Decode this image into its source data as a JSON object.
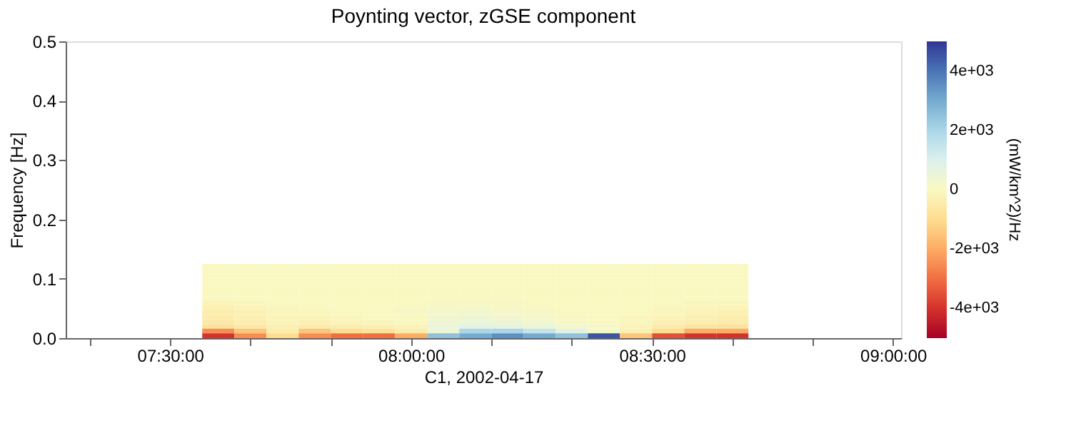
{
  "chart_data": {
    "type": "heatmap",
    "title": "Poynting vector, zGSE component",
    "xlabel": "C1, 2002-04-17",
    "ylabel": "Frequency [Hz]",
    "clabel": "(mW/km^2)/Hz",
    "x": [
      "2002-04-17T07:36",
      "2002-04-17T07:40",
      "2002-04-17T07:44",
      "2002-04-17T07:48",
      "2002-04-17T07:52",
      "2002-04-17T07:56",
      "2002-04-17T08:00",
      "2002-04-17T08:04",
      "2002-04-17T08:08",
      "2002-04-17T08:12",
      "2002-04-17T08:16",
      "2002-04-17T08:20",
      "2002-04-17T08:24",
      "2002-04-17T08:28",
      "2002-04-17T08:32",
      "2002-04-17T08:36",
      "2002-04-17T08:40"
    ],
    "y": [
      0.121,
      0.113,
      0.105,
      0.098,
      0.09,
      0.082,
      0.074,
      0.066,
      0.059,
      0.051,
      0.043,
      0.035,
      0.027,
      0.02,
      0.012,
      0.004
    ],
    "cells": [
      [
        0,
        0,
        0,
        0,
        0,
        0,
        0,
        0,
        0,
        0,
        0,
        0,
        0,
        0,
        0,
        0,
        0
      ],
      [
        0,
        0,
        0,
        0,
        0,
        0,
        0,
        0,
        0,
        0,
        0,
        0,
        0,
        0,
        0,
        0,
        0
      ],
      [
        0,
        0,
        0,
        0,
        0,
        0,
        0,
        0,
        0,
        0,
        0,
        0,
        0,
        0,
        0,
        0,
        0
      ],
      [
        0,
        0,
        0,
        0,
        0,
        0,
        0,
        0,
        0,
        0,
        0,
        0,
        0,
        0,
        0,
        0,
        0
      ],
      [
        0,
        0,
        0,
        0,
        0,
        0,
        0,
        0,
        0,
        0,
        0,
        0,
        0,
        0,
        0,
        0,
        0
      ],
      [
        0,
        0,
        0,
        0,
        0,
        0,
        0,
        0,
        0,
        0,
        0,
        0,
        0,
        0,
        0,
        0,
        0
      ],
      [
        0,
        0,
        0,
        0,
        0,
        0,
        0,
        0,
        0,
        0,
        0,
        0,
        0,
        0,
        0,
        0,
        0
      ],
      [
        0,
        0,
        0,
        0,
        0,
        0,
        0,
        0,
        0,
        0,
        0,
        0,
        0,
        0,
        0,
        0,
        0
      ],
      [
        -200,
        -100,
        0,
        0,
        0,
        0,
        0,
        100,
        100,
        100,
        0,
        0,
        0,
        0,
        0,
        -100,
        -100
      ],
      [
        -300,
        -200,
        -100,
        0,
        0,
        0,
        100,
        200,
        200,
        100,
        100,
        0,
        0,
        0,
        -100,
        -100,
        -200
      ],
      [
        -400,
        -300,
        -100,
        -100,
        0,
        0,
        100,
        200,
        300,
        200,
        100,
        0,
        0,
        0,
        -100,
        -200,
        -300
      ],
      [
        -500,
        -300,
        -200,
        -200,
        -100,
        0,
        0,
        300,
        400,
        300,
        200,
        100,
        0,
        -100,
        -200,
        -300,
        -400
      ],
      [
        -600,
        -400,
        -200,
        -300,
        -200,
        -100,
        0,
        400,
        500,
        400,
        300,
        100,
        0,
        -100,
        -300,
        -400,
        -500
      ],
      [
        -800,
        -600,
        -300,
        -500,
        -400,
        -300,
        -200,
        500,
        800,
        700,
        500,
        200,
        100,
        -200,
        -500,
        -700,
        -800
      ],
      [
        -2500,
        -1500,
        -500,
        -1500,
        -1000,
        -800,
        -500,
        500,
        2000,
        2000,
        1500,
        800,
        200,
        -300,
        -1000,
        -2000,
        -2000
      ],
      [
        -4000,
        -2500,
        -1000,
        -2500,
        -3000,
        -3000,
        -2000,
        2500,
        3000,
        3500,
        3000,
        2500,
        4500,
        -1500,
        -3500,
        -4000,
        -4000
      ]
    ],
    "clim": [
      -5000,
      5000
    ],
    "cticks": [
      {
        "value": -4000,
        "label": "-4e+03"
      },
      {
        "value": -2000,
        "label": "-2e+03"
      },
      0,
      {
        "value": 2000,
        "label": "2e+03"
      },
      {
        "value": 4000,
        "label": "4e+03"
      }
    ],
    "xlim": [
      "2002-04-17T07:17",
      "2002-04-17T09:01"
    ],
    "xticks": [
      {
        "value": "2002-04-17T07:20",
        "label": null
      },
      {
        "value": "2002-04-17T07:30",
        "label": "07:30:00"
      },
      {
        "value": "2002-04-17T07:40",
        "label": null
      },
      {
        "value": "2002-04-17T07:50",
        "label": null
      },
      {
        "value": "2002-04-17T08:00",
        "label": "08:00:00"
      },
      {
        "value": "2002-04-17T08:10",
        "label": null
      },
      {
        "value": "2002-04-17T08:20",
        "label": null
      },
      {
        "value": "2002-04-17T08:30",
        "label": "08:30:00"
      },
      {
        "value": "2002-04-17T08:40",
        "label": null
      },
      {
        "value": "2002-04-17T08:50",
        "label": null
      },
      {
        "value": "2002-04-17T09:00",
        "label": "09:00:00"
      }
    ],
    "ylim": [
      0,
      0.5
    ],
    "yticks": [
      {
        "value": 0,
        "label": "0.0"
      },
      0.1,
      0.2,
      0.3,
      0.4,
      0.5
    ],
    "grid": false
  }
}
